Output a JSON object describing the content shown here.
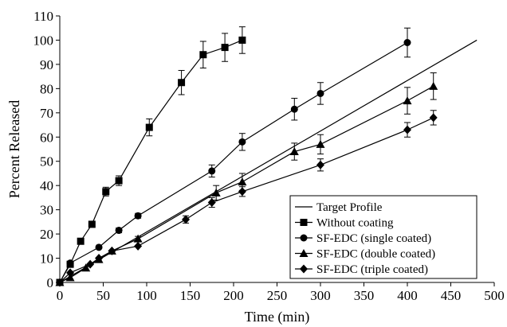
{
  "chart_data": {
    "type": "line",
    "title": "",
    "xlabel": "Time (min)",
    "ylabel": "Percent Released",
    "xlim": [
      0,
      500
    ],
    "ylim": [
      0,
      110
    ],
    "xticks": [
      0,
      50,
      100,
      150,
      200,
      250,
      300,
      350,
      400,
      450,
      500
    ],
    "yticks": [
      0,
      10,
      20,
      30,
      40,
      50,
      60,
      70,
      80,
      90,
      100,
      110
    ],
    "grid": false,
    "legend_position": "bottom-right",
    "series": [
      {
        "name": "Target Profile",
        "marker": "none",
        "x": [
          0,
          480
        ],
        "y": [
          0,
          100
        ]
      },
      {
        "name": "Without coating",
        "marker": "square",
        "x": [
          0,
          12,
          24,
          37,
          53,
          68,
          103,
          140,
          165,
          190,
          210
        ],
        "y": [
          0,
          7.5,
          17,
          24,
          37.5,
          42,
          64,
          82.5,
          94,
          97,
          100
        ],
        "err": [
          0,
          0,
          0,
          0,
          1.8,
          2,
          3.5,
          5,
          5.5,
          5.8,
          5.5
        ]
      },
      {
        "name": "SF-EDC (single coated)",
        "marker": "circle",
        "x": [
          0,
          12,
          45,
          68,
          90,
          175,
          210,
          270,
          300,
          400
        ],
        "y": [
          0,
          8,
          14.5,
          21.5,
          27.5,
          46,
          58,
          71.5,
          78,
          99
        ],
        "err": [
          0,
          0,
          0,
          1,
          1,
          2.5,
          3.5,
          4.5,
          4.5,
          6
        ]
      },
      {
        "name": "SF-EDC (double coated)",
        "marker": "triangle",
        "x": [
          0,
          12,
          30,
          45,
          60,
          90,
          180,
          210,
          270,
          300,
          400,
          430
        ],
        "y": [
          0,
          2,
          6,
          9.5,
          13,
          18,
          37,
          41.5,
          54,
          57,
          75,
          81
        ],
        "err": [
          0,
          0,
          0,
          0,
          0,
          1,
          3,
          3.5,
          3.5,
          4,
          5.5,
          5.5
        ]
      },
      {
        "name": "SF-EDC (triple coated)",
        "marker": "diamond",
        "x": [
          0,
          12,
          35,
          45,
          60,
          90,
          145,
          175,
          210,
          300,
          400,
          430
        ],
        "y": [
          0,
          4,
          7.5,
          10,
          13,
          15,
          26,
          33,
          37.5,
          48.5,
          63,
          68
        ],
        "err": [
          0,
          0,
          0,
          0,
          0,
          0,
          1.5,
          2,
          2,
          2.5,
          3,
          3
        ]
      }
    ]
  }
}
